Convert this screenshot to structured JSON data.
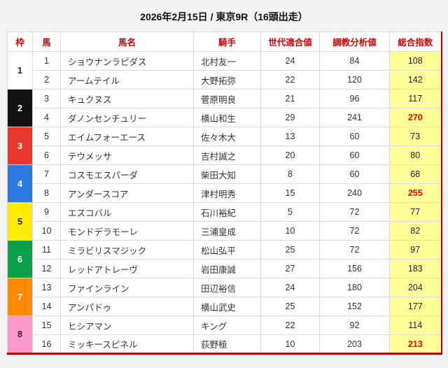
{
  "title": "2026年2月15日 / 東京9R（16頭出走）",
  "colors": {
    "header_text": "#d20000",
    "total_column_bg": "#ffff99",
    "highlight_value": "#ff0000",
    "table_accent_border": "#b00000",
    "page_bg": "#f2f2f2"
  },
  "table": {
    "headers": [
      "枠",
      "馬",
      "馬名",
      "騎手",
      "世代適合値",
      "調教分析値",
      "総合指数"
    ],
    "frame_colors": {
      "1": {
        "bg": "#ffffff",
        "text": "#222222"
      },
      "2": {
        "bg": "#111111",
        "text": "#ffffff"
      },
      "3": {
        "bg": "#e8382d",
        "text": "#ffffff"
      },
      "4": {
        "bg": "#2a7ae2",
        "text": "#ffffff"
      },
      "5": {
        "bg": "#ffeb00",
        "text": "#222222"
      },
      "6": {
        "bg": "#0aa04a",
        "text": "#ffffff"
      },
      "7": {
        "bg": "#ff8a00",
        "text": "#ffffff"
      },
      "8": {
        "bg": "#ff99cc",
        "text": "#222222"
      }
    },
    "rows": [
      {
        "frame": 1,
        "num": 1,
        "name": "ショウナンラピダス",
        "jockey": "北村友一",
        "gen": 24,
        "training": 84,
        "total": 108,
        "total_red": false
      },
      {
        "frame": 1,
        "num": 2,
        "name": "アームテイル",
        "jockey": "大野拓弥",
        "gen": 22,
        "training": 120,
        "total": 142,
        "total_red": false
      },
      {
        "frame": 2,
        "num": 3,
        "name": "キュクヌス",
        "jockey": "菅原明良",
        "gen": 21,
        "training": 96,
        "total": 117,
        "total_red": false
      },
      {
        "frame": 2,
        "num": 4,
        "name": "ダノンセンチュリー",
        "jockey": "横山和生",
        "gen": 29,
        "training": 241,
        "total": 270,
        "total_red": true
      },
      {
        "frame": 3,
        "num": 5,
        "name": "エイムフォーエース",
        "jockey": "佐々木大",
        "gen": 13,
        "training": 60,
        "total": 73,
        "total_red": false
      },
      {
        "frame": 3,
        "num": 6,
        "name": "テウメッサ",
        "jockey": "吉村誠之",
        "gen": 20,
        "training": 60,
        "total": 80,
        "total_red": false
      },
      {
        "frame": 4,
        "num": 7,
        "name": "コスモエスパーダ",
        "jockey": "柴田大知",
        "gen": 8,
        "training": 60,
        "total": 68,
        "total_red": false
      },
      {
        "frame": 4,
        "num": 8,
        "name": "アンダースコア",
        "jockey": "津村明秀",
        "gen": 15,
        "training": 240,
        "total": 255,
        "total_red": true
      },
      {
        "frame": 5,
        "num": 9,
        "name": "エスコバル",
        "jockey": "石川裕紀",
        "gen": 5,
        "training": 72,
        "total": 77,
        "total_red": false
      },
      {
        "frame": 5,
        "num": 10,
        "name": "モンドデラモーレ",
        "jockey": "三浦皇成",
        "gen": 10,
        "training": 72,
        "total": 82,
        "total_red": false
      },
      {
        "frame": 6,
        "num": 11,
        "name": "ミラビリスマジック",
        "jockey": "松山弘平",
        "gen": 25,
        "training": 72,
        "total": 97,
        "total_red": false
      },
      {
        "frame": 6,
        "num": 12,
        "name": "レッドアトレーヴ",
        "jockey": "岩田康誠",
        "gen": 27,
        "training": 156,
        "total": 183,
        "total_red": false
      },
      {
        "frame": 7,
        "num": 13,
        "name": "ファインライン",
        "jockey": "田辺裕信",
        "gen": 24,
        "training": 180,
        "total": 204,
        "total_red": false
      },
      {
        "frame": 7,
        "num": 14,
        "name": "アンパドゥ",
        "jockey": "横山武史",
        "gen": 25,
        "training": 152,
        "total": 177,
        "total_red": false
      },
      {
        "frame": 8,
        "num": 15,
        "name": "ヒシアマン",
        "jockey": "キング",
        "gen": 22,
        "training": 92,
        "total": 114,
        "total_red": false
      },
      {
        "frame": 8,
        "num": 16,
        "name": "ミッキースピネル",
        "jockey": "荻野極",
        "gen": 10,
        "training": 203,
        "total": 213,
        "total_red": true
      }
    ]
  }
}
